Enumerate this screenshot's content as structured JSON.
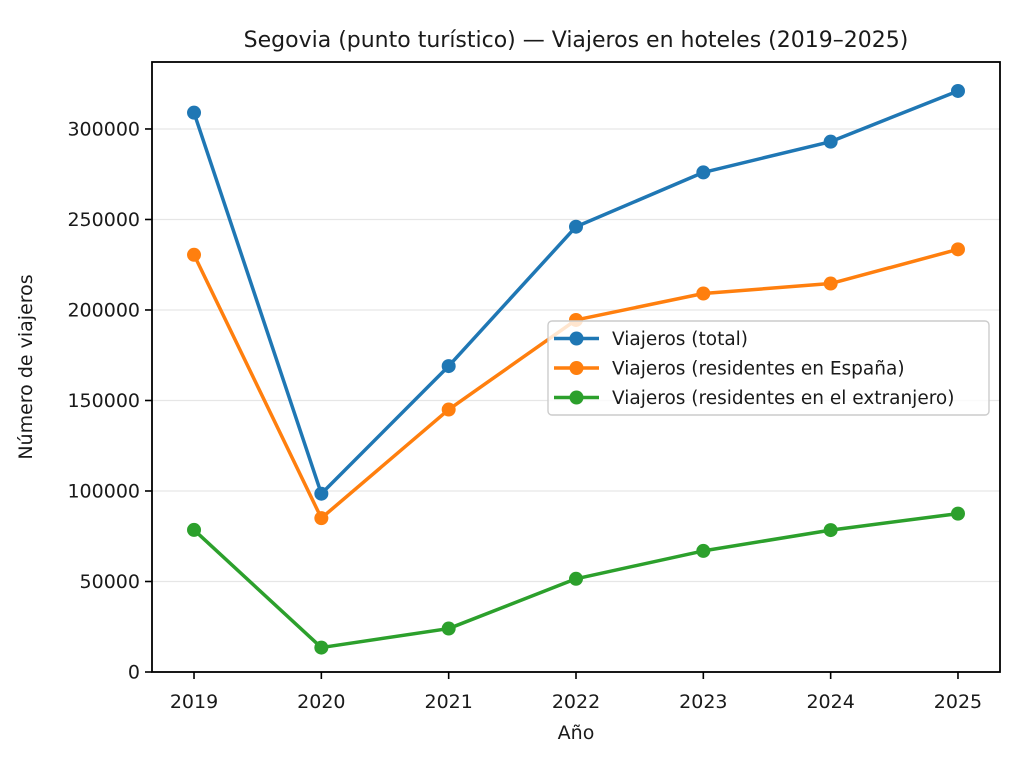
{
  "figure": {
    "background_color": "#ffffff",
    "text_color": "#1a1a1a",
    "grid_color": "#e6e6e6",
    "spine_color": "#000000",
    "legend_border_color": "#cccccc"
  },
  "chart_data": {
    "type": "line",
    "title": "Segovia (punto turístico) — Viajeros en hoteles (2019–2025)",
    "xlabel": "Año",
    "ylabel": "Número de viajeros",
    "x": [
      2019,
      2020,
      2021,
      2022,
      2023,
      2024,
      2025
    ],
    "xtick_labels": [
      "2019",
      "2020",
      "2021",
      "2022",
      "2023",
      "2024",
      "2025"
    ],
    "yticks": [
      0,
      50000,
      100000,
      150000,
      200000,
      250000,
      300000
    ],
    "ytick_labels": [
      "0",
      "50000",
      "100000",
      "150000",
      "200000",
      "250000",
      "300000"
    ],
    "ylim": [
      0,
      337000
    ],
    "xlim": [
      2018.67,
      2025.33
    ],
    "grid": "horizontal",
    "legend_position": "center-right",
    "marker": "circle",
    "series": [
      {
        "key": "total",
        "name": "Viajeros (total)",
        "color": "#1f77b4",
        "values": [
          309000,
          98500,
          169000,
          246000,
          276000,
          293000,
          321000
        ]
      },
      {
        "key": "residentes-espana",
        "name": "Viajeros (residentes en España)",
        "color": "#ff7f0e",
        "values": [
          230500,
          85000,
          145000,
          194500,
          209100,
          214600,
          233500
        ]
      },
      {
        "key": "residentes-extranjero",
        "name": "Viajeros (residentes en el extranjero)",
        "color": "#2ca02c",
        "values": [
          78500,
          13500,
          24000,
          51500,
          66900,
          78400,
          87500
        ]
      }
    ]
  }
}
